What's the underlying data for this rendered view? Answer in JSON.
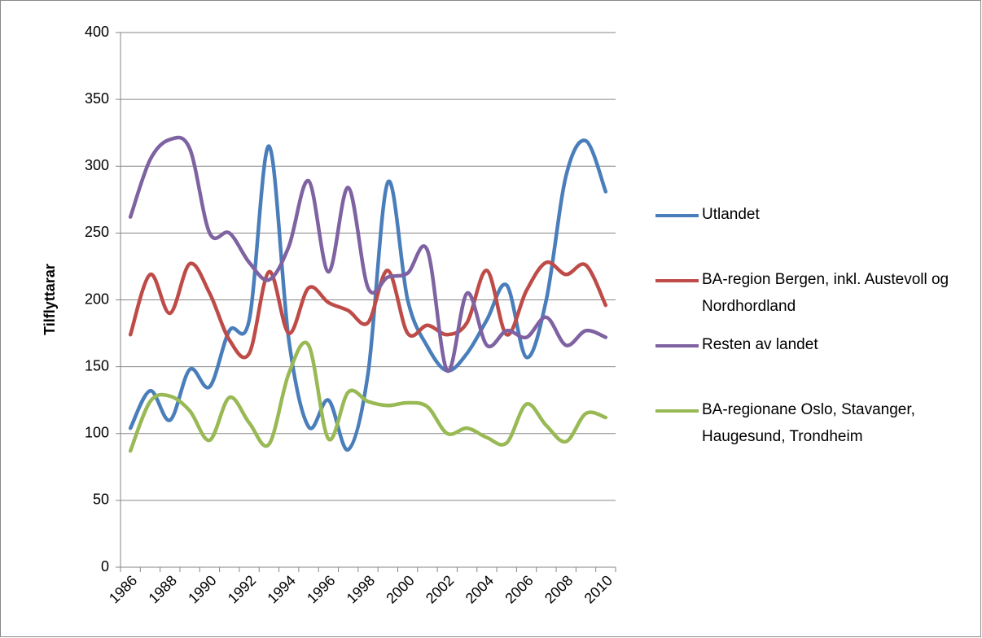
{
  "chart_data": {
    "type": "line",
    "y_label": "Tilflyttarar",
    "categories": [
      "1986",
      null,
      "1988",
      null,
      "1990",
      null,
      "1992",
      null,
      "1994",
      null,
      "1996",
      null,
      "1998",
      null,
      "2000",
      null,
      "2002",
      null,
      "2004",
      null,
      "2006",
      null,
      "2008",
      null,
      "2010"
    ],
    "series": [
      {
        "name": "Utlandet",
        "color": "#4a7ebb",
        "values": [
          104,
          132,
          110,
          148,
          135,
          177,
          185,
          315,
          170,
          105,
          125,
          88,
          145,
          288,
          200,
          165,
          147,
          160,
          185,
          211,
          157,
          200,
          293,
          319,
          281
        ]
      },
      {
        "name": "BA-region Bergen, inkl. Austevoll og Nordhordland",
        "color": "#be4b48",
        "values": [
          174,
          219,
          190,
          227,
          205,
          170,
          160,
          221,
          175,
          209,
          198,
          192,
          183,
          222,
          175,
          181,
          174,
          183,
          222,
          174,
          207,
          228,
          219,
          226,
          196
        ]
      },
      {
        "name": "Resten av landet",
        "color": "#7e62a1",
        "values": [
          262,
          305,
          320,
          313,
          250,
          250,
          228,
          215,
          240,
          289,
          221,
          284,
          209,
          217,
          220,
          237,
          147,
          205,
          166,
          177,
          172,
          187,
          166,
          177,
          172
        ]
      },
      {
        "name": "BA-regionane Oslo, Stavanger, Haugesund, Trondheim",
        "color": "#98b954",
        "values": [
          87,
          124,
          128,
          117,
          95,
          127,
          108,
          92,
          145,
          166,
          96,
          131,
          124,
          121,
          123,
          120,
          100,
          104,
          97,
          93,
          122,
          106,
          94,
          115,
          112
        ]
      }
    ],
    "ylim": [
      0,
      400
    ],
    "yticks": [
      0,
      50,
      100,
      150,
      200,
      250,
      300,
      350,
      400
    ],
    "grid": true,
    "legend": "right",
    "smooth": true
  }
}
